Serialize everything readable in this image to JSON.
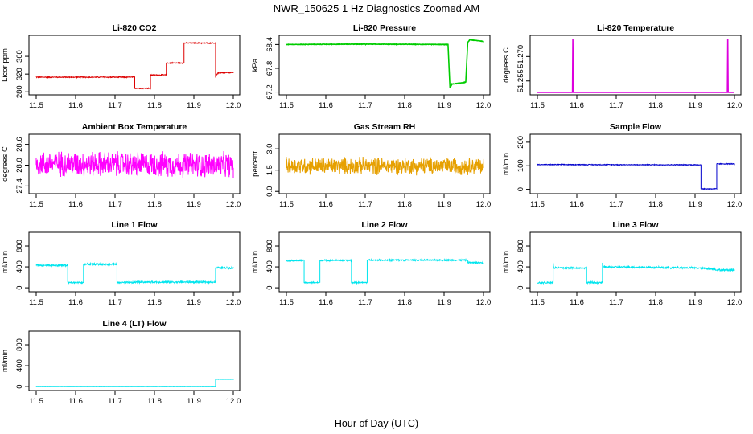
{
  "figure": {
    "title": "NWR_150625  1 Hz Diagnostics Zoomed AM",
    "xlabel": "Hour of Day (UTC)"
  },
  "chart_data": [
    {
      "type": "line",
      "title": "Li-820 CO2",
      "ylabel": "Licor ppm",
      "color": "#dd0000",
      "xlim": [
        11.5,
        12.0
      ],
      "xticks": [
        "11.5",
        "11.6",
        "11.7",
        "11.8",
        "11.9",
        "12.0"
      ],
      "ylim": [
        275,
        400
      ],
      "yticks": [
        280,
        320,
        360
      ],
      "ytick_labels": [
        "280",
        "320",
        "360"
      ],
      "noise": 1.0,
      "segments": [
        [
          11.5,
          313
        ],
        [
          11.75,
          313
        ],
        [
          11.75,
          288
        ],
        [
          11.79,
          288
        ],
        [
          11.79,
          318
        ],
        [
          11.83,
          318
        ],
        [
          11.83,
          345
        ],
        [
          11.875,
          345
        ],
        [
          11.875,
          390
        ],
        [
          11.955,
          390
        ],
        [
          11.955,
          315
        ],
        [
          11.962,
          323
        ],
        [
          12.0,
          323
        ]
      ]
    },
    {
      "type": "line",
      "title": "Li-820 Pressure",
      "ylabel": "kPa",
      "color": "#00cc00",
      "xlim": [
        11.5,
        12.0
      ],
      "xticks": [
        "11.5",
        "11.6",
        "11.7",
        "11.8",
        "11.9",
        "12.0"
      ],
      "ylim": [
        67.15,
        68.55
      ],
      "yticks": [
        67.2,
        67.8,
        68.4
      ],
      "ytick_labels": [
        "67.2",
        "67.8",
        "68.4"
      ],
      "noise": 0.005,
      "segments": [
        [
          11.5,
          68.4
        ],
        [
          11.7,
          68.41
        ],
        [
          11.9,
          68.4
        ],
        [
          11.91,
          68.4
        ],
        [
          11.915,
          67.3
        ],
        [
          11.92,
          67.4
        ],
        [
          11.955,
          67.45
        ],
        [
          11.96,
          68.45
        ],
        [
          11.965,
          68.52
        ],
        [
          12.0,
          68.48
        ]
      ]
    },
    {
      "type": "line",
      "title": "Li-820 Temperature",
      "ylabel": "degrees C",
      "color": "#dd00dd",
      "xlim": [
        11.5,
        12.0
      ],
      "xticks": [
        "11.5",
        "11.6",
        "11.7",
        "11.8",
        "11.9",
        "12.0"
      ],
      "ylim": [
        51.247,
        51.281
      ],
      "yticks": [
        51.255,
        51.27
      ],
      "ytick_labels": [
        "51.255",
        "51.270"
      ],
      "noise": 0,
      "segments": [
        [
          11.5,
          51.248
        ],
        [
          11.589,
          51.248
        ],
        [
          11.59,
          51.281
        ],
        [
          11.591,
          51.248
        ],
        [
          11.982,
          51.248
        ],
        [
          11.983,
          51.281
        ],
        [
          11.984,
          51.248
        ],
        [
          12.0,
          51.248
        ]
      ]
    },
    {
      "type": "line",
      "title": "Ambient Box Temperature",
      "ylabel": "degrees C",
      "color": "#ff00ff",
      "xlim": [
        11.5,
        12.0
      ],
      "xticks": [
        "11.5",
        "11.6",
        "11.7",
        "11.8",
        "11.9",
        "12.0"
      ],
      "ylim": [
        27.2,
        28.8
      ],
      "yticks": [
        27.4,
        28.0,
        28.6
      ],
      "ytick_labels": [
        "27.4",
        "28.0",
        "28.6"
      ],
      "noise": 0.3,
      "segments": [
        [
          11.5,
          28.05
        ],
        [
          12.0,
          28.0
        ]
      ]
    },
    {
      "type": "line",
      "title": "Gas Stream RH",
      "ylabel": "percent",
      "color": "#e6a000",
      "xlim": [
        11.5,
        12.0
      ],
      "xticks": [
        "11.5",
        "11.6",
        "11.7",
        "11.8",
        "11.9",
        "12.0"
      ],
      "ylim": [
        -0.1,
        3.8
      ],
      "yticks": [
        0.0,
        1.5,
        3.0
      ],
      "ytick_labels": [
        "0.0",
        "1.5",
        "3.0"
      ],
      "noise": 0.5,
      "segments": [
        [
          11.5,
          1.8
        ],
        [
          12.0,
          1.8
        ]
      ]
    },
    {
      "type": "line",
      "title": "Sample Flow",
      "ylabel": "ml/min",
      "color": "#0000cc",
      "xlim": [
        11.5,
        12.0
      ],
      "xticks": [
        "11.5",
        "11.6",
        "11.7",
        "11.8",
        "11.9",
        "12.0"
      ],
      "ylim": [
        -15,
        220
      ],
      "yticks": [
        0,
        100,
        200
      ],
      "ytick_labels": [
        "0",
        "100",
        "200"
      ],
      "noise": 1.5,
      "segments": [
        [
          11.5,
          105
        ],
        [
          11.9,
          104
        ],
        [
          11.915,
          104
        ],
        [
          11.915,
          2
        ],
        [
          11.955,
          2
        ],
        [
          11.955,
          108
        ],
        [
          12.0,
          108
        ]
      ]
    },
    {
      "type": "line",
      "title": "Line 1 Flow",
      "ylabel": "ml/min",
      "color": "#00e5ee",
      "xlim": [
        11.5,
        12.0
      ],
      "xticks": [
        "11.5",
        "11.6",
        "11.7",
        "11.8",
        "11.9",
        "12.0"
      ],
      "ylim": [
        -60,
        1000
      ],
      "yticks": [
        0,
        400,
        800
      ],
      "ytick_labels": [
        "0",
        "400",
        "800"
      ],
      "noise": 15,
      "segments": [
        [
          11.5,
          430
        ],
        [
          11.58,
          430
        ],
        [
          11.58,
          100
        ],
        [
          11.62,
          100
        ],
        [
          11.62,
          450
        ],
        [
          11.705,
          450
        ],
        [
          11.705,
          100
        ],
        [
          11.75,
          100
        ],
        [
          11.75,
          110
        ],
        [
          11.955,
          110
        ],
        [
          11.955,
          380
        ],
        [
          12.0,
          380
        ]
      ]
    },
    {
      "type": "line",
      "title": "Line 2 Flow",
      "ylabel": "ml/min",
      "color": "#00e5ee",
      "xlim": [
        11.5,
        12.0
      ],
      "xticks": [
        "11.5",
        "11.6",
        "11.7",
        "11.8",
        "11.9",
        "12.0"
      ],
      "ylim": [
        -60,
        1000
      ],
      "yticks": [
        0,
        400,
        800
      ],
      "ytick_labels": [
        "0",
        "400",
        "800"
      ],
      "noise": 12,
      "segments": [
        [
          11.5,
          520
        ],
        [
          11.545,
          520
        ],
        [
          11.545,
          100
        ],
        [
          11.585,
          100
        ],
        [
          11.585,
          525
        ],
        [
          11.665,
          525
        ],
        [
          11.665,
          100
        ],
        [
          11.705,
          100
        ],
        [
          11.705,
          530
        ],
        [
          11.96,
          530
        ],
        [
          11.96,
          480
        ],
        [
          12.0,
          480
        ]
      ]
    },
    {
      "type": "line",
      "title": "Line 3 Flow",
      "ylabel": "ml/min",
      "color": "#00e5ee",
      "xlim": [
        11.5,
        12.0
      ],
      "xticks": [
        "11.5",
        "11.6",
        "11.7",
        "11.8",
        "11.9",
        "12.0"
      ],
      "ylim": [
        -60,
        1000
      ],
      "yticks": [
        0,
        400,
        800
      ],
      "ytick_labels": [
        "0",
        "400",
        "800"
      ],
      "noise": 15,
      "segments": [
        [
          11.5,
          100
        ],
        [
          11.54,
          100
        ],
        [
          11.54,
          470
        ],
        [
          11.542,
          380
        ],
        [
          11.625,
          380
        ],
        [
          11.625,
          100
        ],
        [
          11.665,
          100
        ],
        [
          11.665,
          470
        ],
        [
          11.667,
          400
        ],
        [
          11.9,
          380
        ],
        [
          11.95,
          360
        ],
        [
          11.955,
          340
        ],
        [
          12.0,
          340
        ]
      ]
    },
    {
      "type": "line",
      "title": "Line 4 (LT) Flow",
      "ylabel": "ml/min",
      "color": "#00e5ee",
      "xlim": [
        11.5,
        12.0
      ],
      "xticks": [
        "11.5",
        "11.6",
        "11.7",
        "11.8",
        "11.9",
        "12.0"
      ],
      "ylim": [
        -60,
        1000
      ],
      "yticks": [
        0,
        400,
        800
      ],
      "ytick_labels": [
        "0",
        "400",
        "800"
      ],
      "noise": 2,
      "segments": [
        [
          11.5,
          5
        ],
        [
          11.955,
          5
        ],
        [
          11.955,
          140
        ],
        [
          12.0,
          140
        ]
      ]
    }
  ]
}
